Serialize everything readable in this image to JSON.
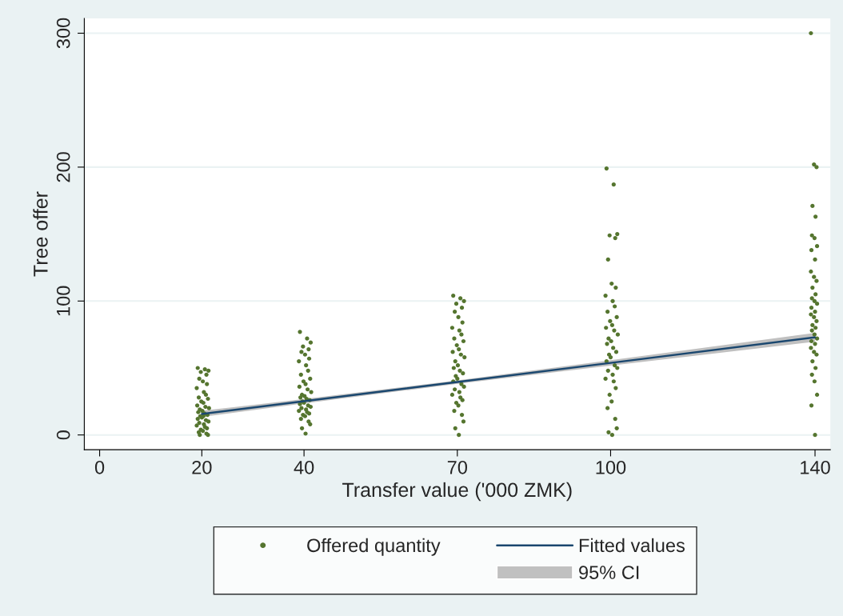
{
  "chart_data": {
    "type": "scatter",
    "xlabel": "Transfer value ('000 ZMK)",
    "ylabel": "Tree offer",
    "xlim": [
      -3,
      143
    ],
    "xticks": [
      0,
      20,
      40,
      70,
      100,
      140
    ],
    "ylim": [
      -11,
      311
    ],
    "yticks": [
      0,
      100,
      200,
      300
    ],
    "grid": "y",
    "legend": "bottom",
    "annotations": [
      "95% CI"
    ],
    "series": [
      {
        "name": "Offered quantity",
        "color": "#55752f",
        "marker": "circle",
        "x": [
          19.2,
          20.6,
          21.3,
          19.8,
          20.9,
          19.5,
          20.2,
          21.0,
          19.0,
          20.4,
          20.8,
          19.4,
          21.2,
          19.9,
          20.3,
          19.1,
          20.7,
          21.4,
          19.6,
          20.1,
          19.3,
          20.5,
          21.1,
          19.7,
          20.0,
          19.2,
          20.8,
          21.3,
          19.5,
          20.4,
          19.0,
          20.6,
          21.0,
          19.8,
          20.2,
          19.4,
          20.9,
          21.2,
          19.6,
          20.3,
          39.2,
          40.6,
          41.3,
          39.8,
          40.9,
          39.5,
          40.2,
          41.0,
          39.0,
          40.4,
          40.8,
          39.4,
          41.2,
          39.9,
          40.3,
          39.1,
          40.7,
          41.4,
          39.6,
          40.1,
          39.3,
          40.5,
          41.1,
          39.7,
          40.0,
          39.2,
          40.8,
          41.3,
          39.5,
          40.4,
          39.0,
          40.6,
          41.0,
          39.8,
          40.2,
          39.4,
          40.9,
          41.2,
          39.6,
          40.3,
          69.2,
          70.6,
          71.3,
          69.8,
          70.9,
          69.5,
          70.2,
          71.0,
          69.0,
          70.4,
          70.8,
          69.4,
          71.2,
          69.9,
          70.3,
          69.1,
          70.7,
          71.4,
          69.6,
          70.1,
          69.3,
          70.5,
          71.1,
          69.7,
          70.0,
          69.2,
          70.8,
          71.3,
          69.5,
          70.4,
          69.0,
          70.6,
          71.0,
          69.8,
          70.2,
          69.4,
          70.9,
          71.2,
          69.6,
          70.3,
          99.2,
          100.6,
          101.3,
          99.8,
          100.9,
          99.5,
          100.2,
          101.0,
          99.0,
          100.4,
          100.8,
          99.4,
          101.2,
          99.9,
          100.3,
          99.1,
          100.7,
          101.4,
          99.6,
          100.1,
          99.3,
          100.5,
          101.1,
          99.7,
          100.0,
          99.2,
          100.8,
          101.3,
          99.5,
          100.4,
          99.0,
          100.6,
          101.0,
          99.8,
          100.2,
          99.4,
          100.9,
          101.2,
          99.6,
          100.3,
          139.2,
          139.8,
          140.3,
          139.5,
          140.1,
          139.4,
          139.9,
          140.4,
          139.3,
          140.0,
          139.2,
          139.8,
          140.3,
          139.5,
          140.1,
          139.4,
          139.9,
          140.4,
          139.3,
          140.0,
          139.2,
          139.8,
          140.3,
          139.5,
          140.1,
          139.4,
          139.9,
          140.4,
          139.3,
          140.0,
          139.2,
          139.8,
          140.3,
          139.5,
          140.1,
          139.4,
          139.9,
          140.4,
          139.3,
          140.0
        ],
        "values": [
          50,
          49,
          48,
          47,
          45,
          42,
          40,
          38,
          35,
          32,
          30,
          28,
          27,
          25,
          24,
          22,
          21,
          20,
          19,
          18,
          17,
          16,
          15,
          14,
          13,
          12,
          11,
          10,
          9,
          8,
          7,
          6,
          5,
          4,
          3,
          2,
          1,
          0,
          0,
          14,
          77,
          72,
          69,
          66,
          64,
          62,
          60,
          57,
          55,
          52,
          48,
          45,
          42,
          40,
          38,
          36,
          34,
          32,
          30,
          29,
          28,
          27,
          26,
          25,
          24,
          23,
          22,
          21,
          20,
          19,
          18,
          17,
          16,
          15,
          14,
          12,
          10,
          8,
          5,
          1,
          104,
          102,
          100,
          98,
          95,
          92,
          88,
          84,
          80,
          78,
          75,
          72,
          70,
          67,
          64,
          62,
          60,
          58,
          55,
          52,
          50,
          48,
          46,
          44,
          42,
          40,
          38,
          36,
          34,
          32,
          30,
          28,
          26,
          24,
          22,
          18,
          15,
          10,
          5,
          0,
          199,
          187,
          150,
          149,
          147,
          131,
          113,
          110,
          104,
          100,
          96,
          92,
          88,
          85,
          82,
          80,
          78,
          75,
          72,
          70,
          68,
          65,
          62,
          60,
          58,
          55,
          52,
          50,
          48,
          45,
          42,
          40,
          35,
          30,
          25,
          20,
          12,
          5,
          2,
          0,
          300,
          202,
          200,
          171,
          163,
          149,
          147,
          141,
          138,
          131,
          122,
          118,
          115,
          110,
          105,
          102,
          100,
          98,
          95,
          92,
          90,
          88,
          85,
          82,
          80,
          78,
          75,
          72,
          70,
          68,
          65,
          62,
          60,
          55,
          50,
          45,
          40,
          30,
          22,
          0
        ]
      },
      {
        "name": "Fitted values",
        "type": "line",
        "color": "#1a476f",
        "x": [
          20,
          40,
          70,
          100,
          140
        ],
        "values": [
          15.7,
          25.2,
          39.5,
          53.8,
          72.9
        ],
        "lower": [
          13.4,
          23.6,
          38.2,
          51.8,
          69.6
        ],
        "upper": [
          18.0,
          26.8,
          40.8,
          55.8,
          76.2
        ]
      }
    ]
  }
}
